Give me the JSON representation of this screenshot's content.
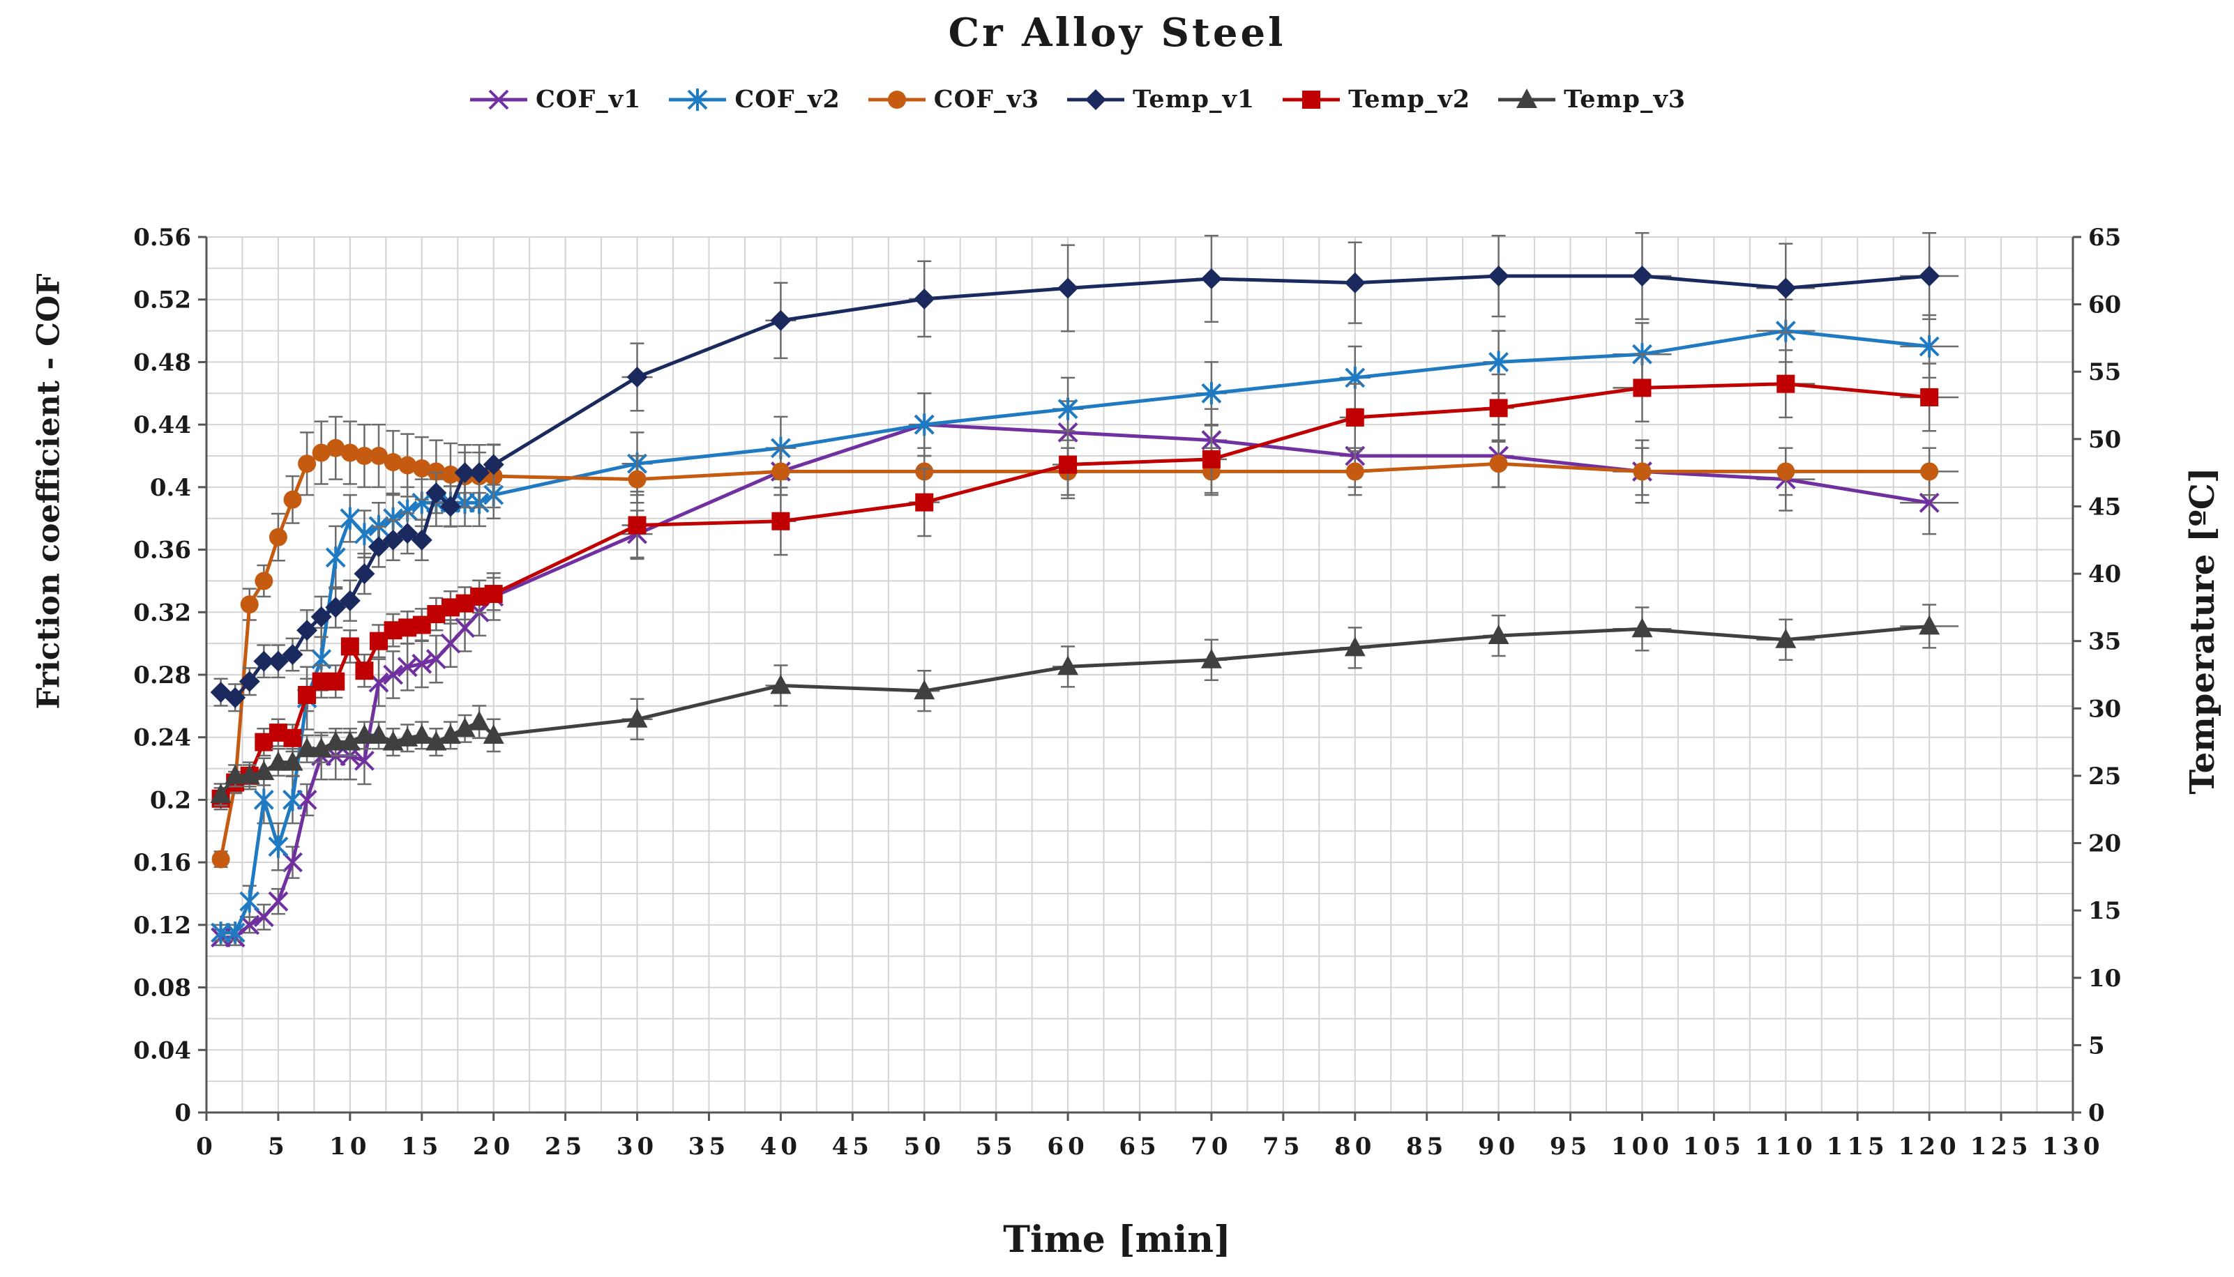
{
  "chart_data": {
    "type": "line",
    "title": "Cr Alloy Steel",
    "xlabel": "Time [min]",
    "ylabel_left": "Friction coefficient - COF",
    "ylabel_right": "Temperature [ºC]",
    "xlim": [
      0,
      130
    ],
    "x_ticks": [
      "0",
      "5",
      "10",
      "15",
      "20",
      "25",
      "30",
      "35",
      "40",
      "45",
      "50",
      "55",
      "60",
      "65",
      "70",
      "75",
      "80",
      "85",
      "90",
      "95",
      "100",
      "105",
      "110",
      "115",
      "120",
      "125",
      "130"
    ],
    "ylim_left": [
      0,
      0.56
    ],
    "y_ticks_left": [
      "0",
      "0.04",
      "0.08",
      "0.12",
      "0.16",
      "0.2",
      "0.24",
      "0.28",
      "0.32",
      "0.36",
      "0.4",
      "0.44",
      "0.48",
      "0.52",
      "0.56"
    ],
    "ylim_right": [
      0,
      65
    ],
    "y_ticks_right": [
      "0",
      "5",
      "10",
      "15",
      "20",
      "25",
      "30",
      "35",
      "40",
      "45",
      "50",
      "55",
      "60",
      "65"
    ],
    "grid": true,
    "legend_position": "top",
    "series": [
      {
        "name": "COF_v1",
        "axis": "left",
        "color": "#7030a0",
        "marker": "x",
        "x": [
          1,
          2,
          3,
          4,
          5,
          6,
          7,
          8,
          9,
          10,
          11,
          12,
          13,
          14,
          15,
          16,
          17,
          18,
          19,
          20,
          30,
          40,
          50,
          60,
          70,
          80,
          90,
          100,
          110,
          120
        ],
        "y": [
          0.112,
          0.112,
          0.12,
          0.125,
          0.135,
          0.16,
          0.2,
          0.228,
          0.228,
          0.228,
          0.225,
          0.275,
          0.28,
          0.285,
          0.287,
          0.29,
          0.3,
          0.31,
          0.32,
          0.33,
          0.37,
          0.41,
          0.44,
          0.435,
          0.43,
          0.42,
          0.42,
          0.41,
          0.405,
          0.39
        ],
        "err": [
          0.005,
          0.005,
          0.005,
          0.008,
          0.008,
          0.01,
          0.01,
          0.015,
          0.015,
          0.015,
          0.015,
          0.015,
          0.015,
          0.015,
          0.015,
          0.015,
          0.015,
          0.015,
          0.015,
          0.015,
          0.015,
          0.015,
          0.02,
          0.02,
          0.02,
          0.02,
          0.02,
          0.02,
          0.02,
          0.02
        ]
      },
      {
        "name": "COF_v2",
        "axis": "left",
        "color": "#1f7ac2",
        "marker": "star",
        "x": [
          1,
          2,
          3,
          4,
          5,
          6,
          7,
          8,
          9,
          10,
          11,
          12,
          13,
          14,
          15,
          16,
          17,
          18,
          19,
          20,
          30,
          40,
          50,
          60,
          70,
          80,
          90,
          100,
          110,
          120
        ],
        "y": [
          0.115,
          0.115,
          0.135,
          0.2,
          0.17,
          0.2,
          0.265,
          0.29,
          0.355,
          0.38,
          0.37,
          0.375,
          0.38,
          0.385,
          0.39,
          0.39,
          0.39,
          0.39,
          0.39,
          0.395,
          0.415,
          0.425,
          0.44,
          0.45,
          0.46,
          0.47,
          0.48,
          0.485,
          0.5,
          0.49
        ],
        "err": [
          0.005,
          0.005,
          0.01,
          0.015,
          0.015,
          0.015,
          0.02,
          0.02,
          0.02,
          0.015,
          0.015,
          0.015,
          0.015,
          0.015,
          0.015,
          0.015,
          0.015,
          0.015,
          0.015,
          0.015,
          0.02,
          0.02,
          0.02,
          0.02,
          0.02,
          0.02,
          0.02,
          0.02,
          0.02,
          0.02
        ]
      },
      {
        "name": "COF_v3",
        "axis": "left",
        "color": "#c55a11",
        "marker": "circle",
        "x": [
          1,
          2,
          3,
          4,
          5,
          6,
          7,
          8,
          9,
          10,
          11,
          12,
          13,
          14,
          15,
          16,
          17,
          18,
          19,
          20,
          30,
          40,
          50,
          60,
          70,
          80,
          90,
          100,
          110,
          120
        ],
        "y": [
          0.162,
          0.21,
          0.325,
          0.34,
          0.368,
          0.392,
          0.415,
          0.422,
          0.425,
          0.422,
          0.42,
          0.42,
          0.416,
          0.414,
          0.412,
          0.41,
          0.408,
          0.407,
          0.407,
          0.407,
          0.405,
          0.41,
          0.41,
          0.41,
          0.41,
          0.41,
          0.415,
          0.41,
          0.41,
          0.41
        ],
        "err": [
          0.005,
          0.005,
          0.01,
          0.01,
          0.015,
          0.015,
          0.02,
          0.02,
          0.02,
          0.02,
          0.02,
          0.02,
          0.02,
          0.02,
          0.02,
          0.02,
          0.02,
          0.02,
          0.02,
          0.02,
          0.015,
          0.015,
          0.015,
          0.015,
          0.015,
          0.015,
          0.015,
          0.015,
          0.015,
          0.015
        ]
      },
      {
        "name": "Temp_v1",
        "axis": "right",
        "color": "#1a2a5e",
        "marker": "diamond",
        "x": [
          1,
          2,
          3,
          4,
          5,
          6,
          7,
          8,
          9,
          10,
          11,
          12,
          13,
          14,
          15,
          16,
          17,
          18,
          19,
          20,
          30,
          40,
          50,
          60,
          70,
          80,
          90,
          100,
          110,
          120
        ],
        "y": [
          31.2,
          30.8,
          32,
          33.5,
          33.5,
          34,
          35.8,
          36.8,
          37.5,
          38,
          40,
          42,
          42.5,
          43,
          42.5,
          46,
          45,
          47.5,
          47.5,
          48.1,
          54.6,
          58.8,
          60.4,
          61.2,
          61.9,
          61.6,
          62.1,
          62.1,
          61.2,
          62.1
        ],
        "err": [
          1,
          1,
          1,
          1.2,
          1.2,
          1.2,
          1.5,
          1.5,
          1.5,
          1.5,
          1.5,
          1.5,
          1.5,
          1.5,
          1.5,
          1.5,
          1.5,
          1.5,
          1.5,
          1.5,
          2.5,
          2.8,
          2.8,
          3.2,
          3.2,
          3,
          3,
          3.2,
          3.3,
          3.2
        ]
      },
      {
        "name": "Temp_v2",
        "axis": "right",
        "color": "#c00000",
        "marker": "square",
        "x": [
          1,
          2,
          3,
          4,
          5,
          6,
          7,
          8,
          9,
          10,
          11,
          12,
          13,
          14,
          15,
          16,
          17,
          18,
          19,
          20,
          30,
          40,
          50,
          60,
          70,
          80,
          90,
          100,
          110,
          120
        ],
        "y": [
          23.3,
          24.5,
          25,
          27.5,
          28.2,
          27.8,
          31,
          32,
          32,
          34.6,
          32.8,
          35,
          35.8,
          36,
          36.2,
          37,
          37.5,
          37.8,
          38.3,
          38.5,
          43.6,
          43.9,
          45.3,
          48.1,
          48.5,
          51.6,
          52.3,
          53.8,
          54.1,
          53.1
        ],
        "err": [
          0.8,
          0.8,
          1,
          1,
          1,
          1,
          1.2,
          1.2,
          1.2,
          1.2,
          1.2,
          1.2,
          1.2,
          1.2,
          1.2,
          1.2,
          1.2,
          1.2,
          1.2,
          1.2,
          2.5,
          2.5,
          2.5,
          2.5,
          2.5,
          2.5,
          2.5,
          2.5,
          2.5,
          2.5
        ]
      },
      {
        "name": "Temp_v3",
        "axis": "right",
        "color": "#404040",
        "marker": "triangle",
        "x": [
          1,
          2,
          3,
          4,
          5,
          6,
          7,
          8,
          9,
          10,
          11,
          12,
          13,
          14,
          15,
          16,
          17,
          18,
          19,
          20,
          30,
          40,
          50,
          60,
          70,
          80,
          90,
          100,
          110,
          120
        ],
        "y": [
          23.6,
          25,
          25,
          25.3,
          26,
          26,
          27,
          27,
          27.5,
          27.5,
          28,
          28,
          27.5,
          27.8,
          28,
          27.5,
          28,
          28.5,
          29,
          28,
          29.2,
          31.7,
          31.3,
          33.1,
          33.6,
          34.5,
          35.4,
          35.9,
          35.1,
          36.1
        ],
        "err": [
          0.8,
          0.8,
          0.8,
          1,
          1,
          1,
          1,
          1,
          1,
          1,
          1,
          1,
          1,
          1,
          1,
          1,
          1,
          1,
          1.2,
          1.2,
          1.5,
          1.5,
          1.5,
          1.5,
          1.5,
          1.5,
          1.5,
          1.6,
          1.5,
          1.6
        ]
      }
    ]
  }
}
